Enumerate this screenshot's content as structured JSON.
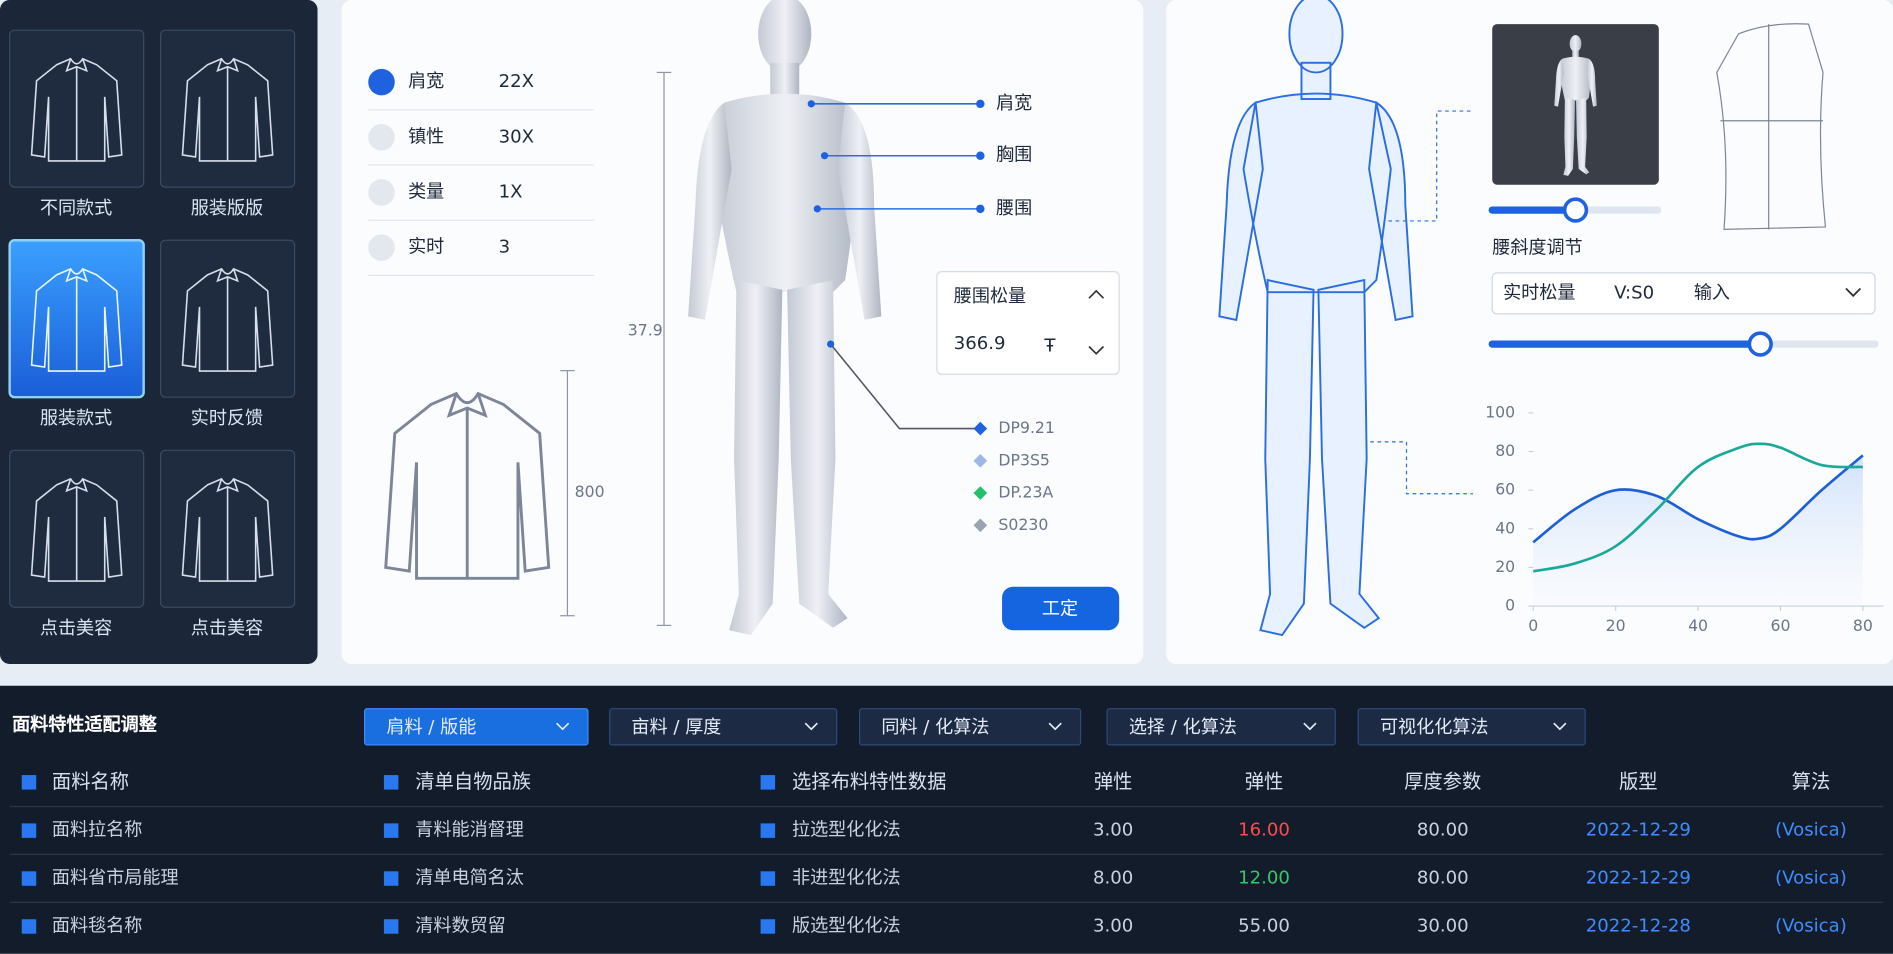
{
  "left_panel": {
    "tiles": [
      "不同款式",
      "服装版版",
      "服装款式",
      "实时反馈",
      "点击美容",
      "点击美容"
    ]
  },
  "measure_panel": {
    "rows": [
      {
        "label": "肩宽",
        "value": "22X"
      },
      {
        "label": "镇性",
        "value": "30X"
      },
      {
        "label": "类量",
        "value": "1X"
      },
      {
        "label": "实时",
        "value": "3"
      }
    ],
    "dimension_body": "37.9",
    "dimension_jacket": "800",
    "body_labels": [
      "肩宽",
      "胸围",
      "腰围"
    ],
    "legend": [
      "DP9.21",
      "DP3S5",
      "DP.23A",
      "S0230"
    ],
    "card": {
      "title": "腰围松量",
      "value": "366.9",
      "unit": "Ŧ"
    },
    "button": "工定"
  },
  "adjust_panel": {
    "slider_label": "腰斜度调节",
    "select": [
      "实时松量",
      "V:S0",
      "输入"
    ]
  },
  "chart_data": {
    "type": "line",
    "x": [
      0,
      10,
      20,
      30,
      40,
      50,
      55,
      60,
      70,
      80
    ],
    "series": [
      {
        "color": "#1f5fd6",
        "values": [
          33,
          50,
          60,
          57,
          45,
          36,
          35,
          40,
          60,
          78
        ]
      },
      {
        "color": "#19a89a",
        "values": [
          18,
          22,
          31,
          50,
          72,
          82,
          84,
          82,
          73,
          72
        ]
      }
    ],
    "xlim": [
      0,
      80
    ],
    "ylim": [
      0,
      100
    ],
    "xticks": [
      0,
      20,
      40,
      60,
      80
    ],
    "yticks": [
      0,
      20,
      40,
      60,
      80,
      100
    ]
  },
  "fabric": {
    "title": "面料特性适配调整",
    "filters": [
      "肩料 / 版能",
      "亩料 / 厚度",
      "同料 / 化算法",
      "选择 / 化算法",
      "可视化化算法"
    ],
    "table": {
      "headers": [
        "面料名称",
        "清单自物品族",
        "选择布料特性数据",
        "弹性",
        "弹性",
        "厚度参数",
        "版型",
        "算法"
      ],
      "rows": [
        [
          "面料拉名称",
          "青料能消督理",
          "拉选型化化法",
          "3.00",
          "16.00",
          "80.00",
          "2022-12-29",
          "(Vosica)"
        ],
        [
          "面料省市局能理",
          "清单电简名汰",
          "非进型化化法",
          "8.00",
          "12.00",
          "80.00",
          "2022-12-29",
          "(Vosica)"
        ],
        [
          "面料毯名称",
          "清料数贸留",
          "版选型化化法",
          "3.00",
          "55.00",
          "30.00",
          "2022-12-28",
          "(Vosica)"
        ]
      ]
    }
  }
}
